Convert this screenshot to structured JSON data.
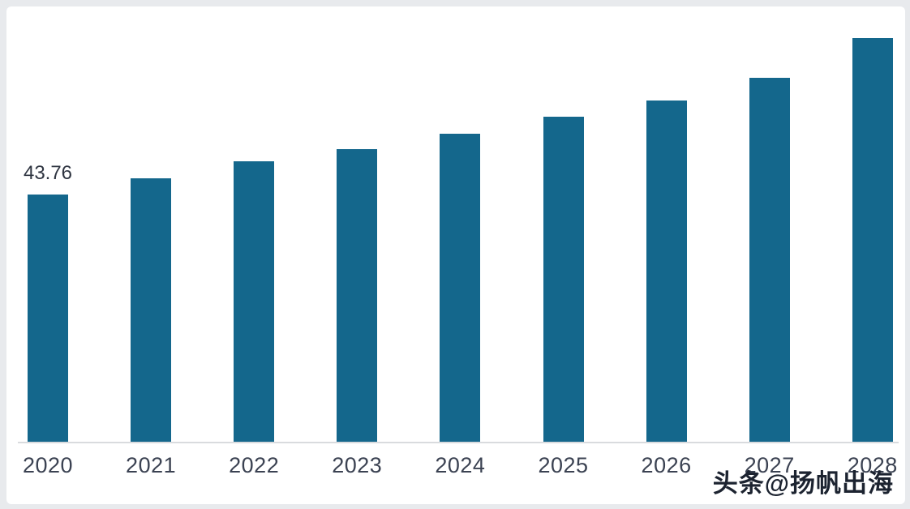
{
  "chart_data": {
    "type": "bar",
    "title": "",
    "xlabel": "",
    "ylabel": "",
    "categories": [
      "2020",
      "2021",
      "2022",
      "2023",
      "2024",
      "2025",
      "2026",
      "2027",
      "2028"
    ],
    "values": [
      43.76,
      46.6,
      49.7,
      51.8,
      54.5,
      57.6,
      60.4,
      64.4,
      71.5
    ],
    "value_labels": [
      "43.76",
      "",
      "",
      "",
      "",
      "",
      "",
      "",
      ""
    ],
    "ylim": [
      0,
      78
    ],
    "grid": false,
    "legend": false,
    "bar_color": "#14678C",
    "tick_label_color": "#3b4252",
    "value_label_color": "#2e3440",
    "axis_line_color": "#d9dbde"
  },
  "watermark": {
    "text": "头条@扬帆出海",
    "color": "#1c2330"
  }
}
